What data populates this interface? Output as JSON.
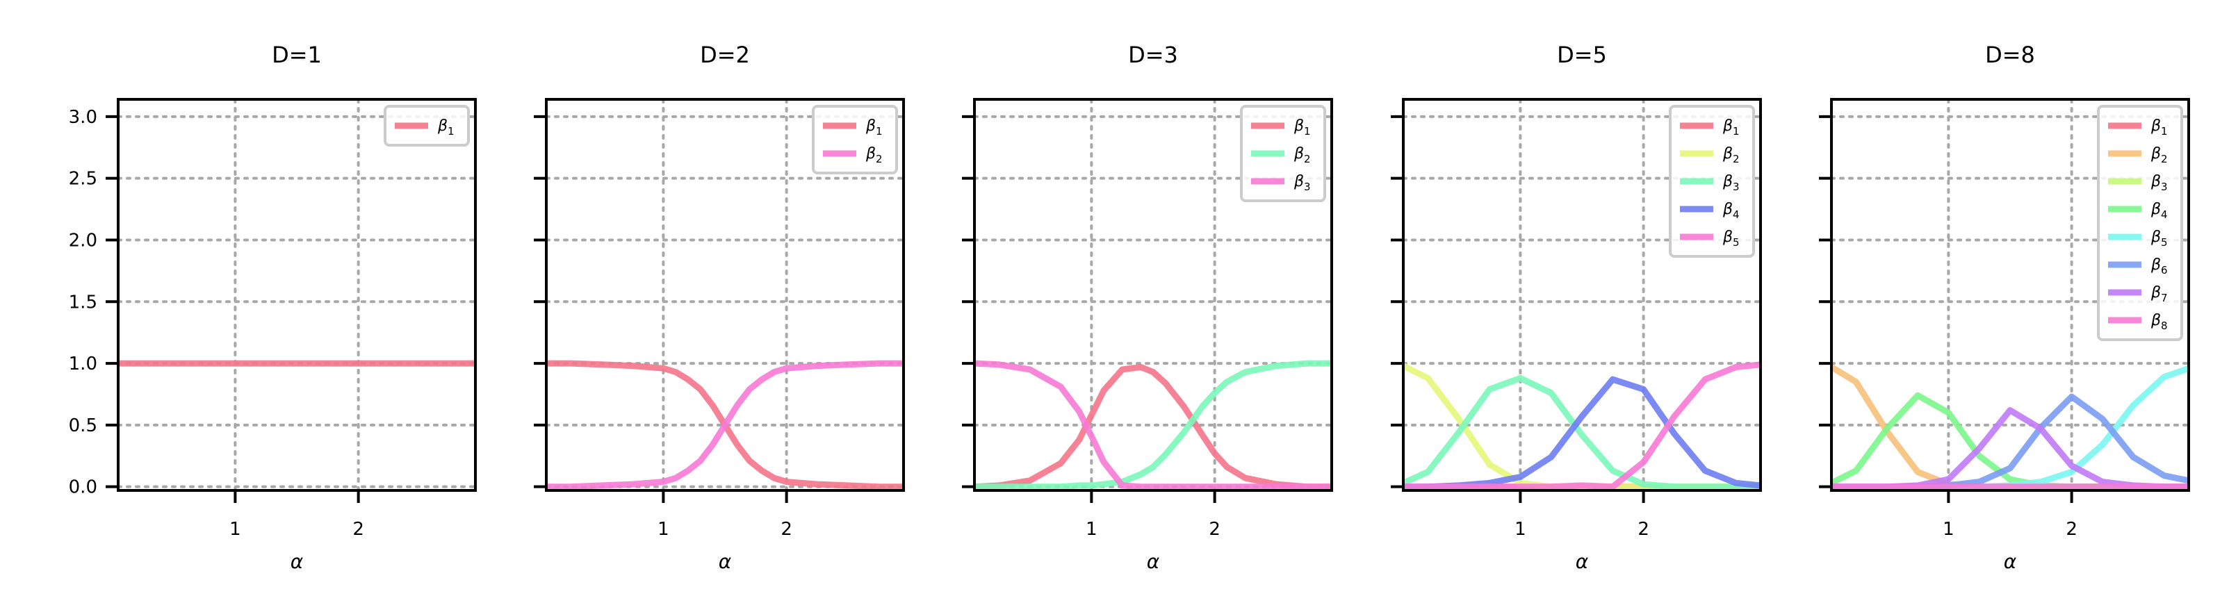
{
  "figure": {
    "background": "#ffffff",
    "grid": true,
    "grid_color": "#a8a8a8"
  },
  "chart_data": [
    {
      "type": "line",
      "title": "D=1",
      "xlabel": "α",
      "ylabel": "",
      "xlim": [
        0.05,
        2.95
      ],
      "ylim": [
        -0.03,
        3.14
      ],
      "xticks": [
        1,
        2
      ],
      "yticks": [
        0.0,
        0.5,
        1.0,
        1.5,
        2.0,
        2.5,
        3.0
      ],
      "yticklabels": [
        "0.0",
        "0.5",
        "1.0",
        "1.5",
        "2.0",
        "2.5",
        "3.0"
      ],
      "legend_position": "top-right",
      "x": [
        0.05,
        0.25,
        0.5,
        0.75,
        1.0,
        1.25,
        1.5,
        1.75,
        2.0,
        2.25,
        2.5,
        2.75,
        2.95
      ],
      "series": [
        {
          "name": "β",
          "subscript": "1",
          "color": "#f4768a",
          "values": [
            1.0,
            1.0,
            1.0,
            1.0,
            1.0,
            1.0,
            1.0,
            1.0,
            1.0,
            1.0,
            1.0,
            1.0,
            1.0
          ]
        }
      ]
    },
    {
      "type": "line",
      "title": "D=2",
      "xlabel": "α",
      "ylabel": "",
      "xlim": [
        0.05,
        2.95
      ],
      "ylim": [
        -0.03,
        3.14
      ],
      "xticks": [
        1,
        2
      ],
      "yticks": [
        0.0,
        0.5,
        1.0,
        1.5,
        2.0,
        2.5,
        3.0
      ],
      "legend_position": "top-right",
      "x": [
        0.05,
        0.25,
        0.5,
        0.75,
        1.0,
        1.1,
        1.2,
        1.3,
        1.4,
        1.5,
        1.6,
        1.7,
        1.8,
        1.9,
        2.0,
        2.25,
        2.5,
        2.75,
        2.95
      ],
      "series": [
        {
          "name": "β",
          "subscript": "1",
          "color": "#f4768a",
          "values": [
            1.0,
            1.0,
            0.99,
            0.98,
            0.96,
            0.93,
            0.87,
            0.79,
            0.66,
            0.5,
            0.34,
            0.21,
            0.13,
            0.07,
            0.04,
            0.02,
            0.01,
            0.0,
            0.0
          ]
        },
        {
          "name": "β",
          "subscript": "2",
          "color": "#f77ad6",
          "values": [
            0.0,
            0.0,
            0.01,
            0.02,
            0.04,
            0.07,
            0.13,
            0.21,
            0.34,
            0.5,
            0.66,
            0.79,
            0.87,
            0.93,
            0.96,
            0.98,
            0.99,
            1.0,
            1.0
          ]
        }
      ]
    },
    {
      "type": "line",
      "title": "D=3",
      "xlabel": "α",
      "ylabel": "",
      "xlim": [
        0.05,
        2.95
      ],
      "ylim": [
        -0.03,
        3.14
      ],
      "xticks": [
        1,
        2
      ],
      "yticks": [
        0.0,
        0.5,
        1.0,
        1.5,
        2.0,
        2.5,
        3.0
      ],
      "legend_position": "top-right",
      "x": [
        0.05,
        0.25,
        0.5,
        0.75,
        0.9,
        1.0,
        1.1,
        1.25,
        1.4,
        1.5,
        1.6,
        1.75,
        1.9,
        2.0,
        2.1,
        2.25,
        2.5,
        2.75,
        2.95
      ],
      "series": [
        {
          "name": "β",
          "subscript": "1",
          "color": "#f4768a",
          "values": [
            0.0,
            0.01,
            0.05,
            0.19,
            0.38,
            0.58,
            0.78,
            0.95,
            0.97,
            0.93,
            0.84,
            0.65,
            0.42,
            0.27,
            0.16,
            0.07,
            0.02,
            0.0,
            0.0
          ]
        },
        {
          "name": "β",
          "subscript": "2",
          "color": "#7af7b8",
          "values": [
            0.0,
            0.0,
            0.0,
            0.0,
            0.01,
            0.01,
            0.02,
            0.04,
            0.1,
            0.16,
            0.26,
            0.44,
            0.65,
            0.76,
            0.85,
            0.93,
            0.98,
            1.0,
            1.0
          ]
        },
        {
          "name": "β",
          "subscript": "3",
          "color": "#f77ad6",
          "values": [
            1.0,
            0.99,
            0.95,
            0.81,
            0.61,
            0.41,
            0.2,
            0.01,
            0.0,
            0.0,
            0.0,
            0.0,
            0.0,
            0.0,
            0.0,
            0.0,
            0.0,
            0.0,
            0.0
          ]
        }
      ]
    },
    {
      "type": "line",
      "title": "D=5",
      "xlabel": "α",
      "ylabel": "",
      "xlim": [
        0.05,
        2.95
      ],
      "ylim": [
        -0.03,
        3.14
      ],
      "xticks": [
        1,
        2
      ],
      "yticks": [
        0.0,
        0.5,
        1.0,
        1.5,
        2.0,
        2.5,
        3.0
      ],
      "legend_position": "top-right",
      "x": [
        0.05,
        0.25,
        0.5,
        0.75,
        1.0,
        1.25,
        1.5,
        1.75,
        2.0,
        2.25,
        2.5,
        2.75,
        2.95
      ],
      "series": [
        {
          "name": "β",
          "subscript": "1",
          "color": "#f4768a",
          "values": [
            0.0,
            0.0,
            0.0,
            0.0,
            0.0,
            0.0,
            0.0,
            0.0,
            0.0,
            0.0,
            0.0,
            0.0,
            0.0
          ]
        },
        {
          "name": "β",
          "subscript": "2",
          "color": "#e5f77a",
          "values": [
            0.98,
            0.88,
            0.55,
            0.18,
            0.03,
            0.0,
            0.0,
            0.0,
            0.0,
            0.0,
            0.0,
            0.0,
            0.0
          ]
        },
        {
          "name": "β",
          "subscript": "3",
          "color": "#7af7b8",
          "values": [
            0.03,
            0.12,
            0.44,
            0.79,
            0.88,
            0.76,
            0.42,
            0.13,
            0.02,
            0.0,
            0.0,
            0.0,
            0.0
          ]
        },
        {
          "name": "β",
          "subscript": "4",
          "color": "#6e7ef2",
          "values": [
            0.0,
            0.0,
            0.01,
            0.03,
            0.08,
            0.24,
            0.57,
            0.87,
            0.79,
            0.43,
            0.13,
            0.03,
            0.01
          ]
        },
        {
          "name": "β",
          "subscript": "5",
          "color": "#f77ad6",
          "values": [
            0.0,
            0.0,
            0.0,
            0.0,
            0.0,
            0.0,
            0.01,
            0.0,
            0.2,
            0.57,
            0.87,
            0.97,
            0.99
          ]
        }
      ]
    },
    {
      "type": "line",
      "title": "D=8",
      "xlabel": "α",
      "ylabel": "",
      "xlim": [
        0.05,
        2.95
      ],
      "ylim": [
        -0.03,
        3.14
      ],
      "xticks": [
        1,
        2
      ],
      "yticks": [
        0.0,
        0.5,
        1.0,
        1.5,
        2.0,
        2.5,
        3.0
      ],
      "legend_position": "top-right",
      "x": [
        0.05,
        0.25,
        0.5,
        0.75,
        1.0,
        1.25,
        1.5,
        1.75,
        2.0,
        2.25,
        2.5,
        2.75,
        2.95
      ],
      "series": [
        {
          "name": "β",
          "subscript": "1",
          "color": "#f4768a",
          "values": [
            0.0,
            0.0,
            0.0,
            0.0,
            0.0,
            0.0,
            0.0,
            0.0,
            0.0,
            0.0,
            0.0,
            0.0,
            0.0
          ]
        },
        {
          "name": "β",
          "subscript": "2",
          "color": "#f7c07a",
          "values": [
            0.97,
            0.85,
            0.45,
            0.12,
            0.02,
            0.0,
            0.0,
            0.0,
            0.0,
            0.0,
            0.0,
            0.0,
            0.0
          ]
        },
        {
          "name": "β",
          "subscript": "3",
          "color": "#c7f77a",
          "values": [
            0.0,
            0.0,
            0.0,
            0.0,
            0.0,
            0.0,
            0.0,
            0.0,
            0.0,
            0.0,
            0.0,
            0.0,
            0.0
          ]
        },
        {
          "name": "β",
          "subscript": "4",
          "color": "#7af78a",
          "values": [
            0.03,
            0.13,
            0.47,
            0.74,
            0.6,
            0.25,
            0.06,
            0.01,
            0.0,
            0.0,
            0.0,
            0.0,
            0.0
          ]
        },
        {
          "name": "β",
          "subscript": "5",
          "color": "#7af7f0",
          "values": [
            0.0,
            0.0,
            0.0,
            0.0,
            0.0,
            0.0,
            0.01,
            0.04,
            0.12,
            0.34,
            0.66,
            0.89,
            0.96
          ]
        },
        {
          "name": "β",
          "subscript": "6",
          "color": "#7a9cf2",
          "values": [
            0.0,
            0.0,
            0.0,
            0.0,
            0.01,
            0.04,
            0.15,
            0.48,
            0.73,
            0.55,
            0.24,
            0.09,
            0.05
          ]
        },
        {
          "name": "β",
          "subscript": "7",
          "color": "#c07af7",
          "values": [
            0.0,
            0.0,
            0.0,
            0.01,
            0.06,
            0.31,
            0.62,
            0.47,
            0.17,
            0.04,
            0.01,
            0.0,
            0.0
          ]
        },
        {
          "name": "β",
          "subscript": "8",
          "color": "#f77ad6",
          "values": [
            0.0,
            0.0,
            0.0,
            0.0,
            0.0,
            0.0,
            0.0,
            0.0,
            0.0,
            0.0,
            0.0,
            0.0,
            0.0
          ]
        }
      ]
    }
  ]
}
